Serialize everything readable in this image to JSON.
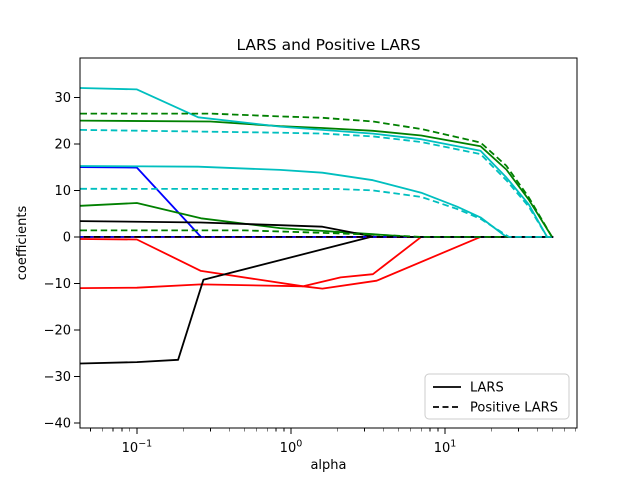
{
  "chart_data": {
    "type": "line",
    "title": "LARS and Positive LARS",
    "xlabel": "alpha",
    "ylabel": "coefficients",
    "x_scale": "log",
    "xlim": [
      0.0427,
      71.9
    ],
    "ylim": [
      -41.05,
      38.45
    ],
    "grid": false,
    "legend_position": "lower right",
    "legend_entries": [
      {
        "label": "LARS",
        "linestyle": "solid"
      },
      {
        "label": "Positive LARS",
        "linestyle": "dashed"
      }
    ],
    "x_ticks": [
      {
        "alpha": 0.1,
        "mantissa": "10",
        "exponent": "−1"
      },
      {
        "alpha": 1,
        "mantissa": "10",
        "exponent": "0"
      },
      {
        "alpha": 10,
        "mantissa": "10",
        "exponent": "1"
      }
    ],
    "x_minor_ticks": [
      0.05,
      0.06,
      0.07,
      0.08,
      0.09,
      0.2,
      0.3,
      0.4,
      0.5,
      0.6,
      0.7,
      0.8,
      0.9,
      2,
      3,
      4,
      5,
      6,
      7,
      8,
      9,
      20,
      30,
      40,
      50,
      60,
      70
    ],
    "y_ticks": [
      {
        "value": -40,
        "label": "−40"
      },
      {
        "value": -30,
        "label": "−30"
      },
      {
        "value": -20,
        "label": "−20"
      },
      {
        "value": -10,
        "label": "−10"
      },
      {
        "value": 0,
        "label": "0"
      },
      {
        "value": 10,
        "label": "10"
      },
      {
        "value": 20,
        "label": "20"
      },
      {
        "value": 30,
        "label": "30"
      }
    ],
    "colors": {
      "blue": "#0000ff",
      "green": "#008000",
      "red": "#ff0000",
      "cyan": "#00bfbf",
      "black": "#000000"
    },
    "series": [
      {
        "name": "lars-zero-line",
        "color": "#000000",
        "style": "solid",
        "points": [
          [
            0.043,
            0
          ],
          [
            50.3,
            0
          ]
        ]
      },
      {
        "name": "lars-blue",
        "color": "#0000ff",
        "style": "solid",
        "points": [
          [
            0.043,
            15.0
          ],
          [
            0.1,
            14.9
          ],
          [
            0.26,
            0
          ],
          [
            50.3,
            0
          ]
        ]
      },
      {
        "name": "lars-green-low",
        "color": "#008000",
        "style": "solid",
        "points": [
          [
            0.043,
            6.7
          ],
          [
            0.1,
            7.3
          ],
          [
            0.26,
            4.0
          ],
          [
            0.85,
            1.9
          ],
          [
            1.6,
            1.3
          ],
          [
            3.4,
            0.6
          ],
          [
            6,
            0
          ],
          [
            50.3,
            0
          ]
        ]
      },
      {
        "name": "lars-red-flat",
        "color": "#ff0000",
        "style": "solid",
        "points": [
          [
            0.043,
            -11.0
          ],
          [
            0.1,
            -10.9
          ],
          [
            0.26,
            -10.2
          ],
          [
            1.2,
            -10.6
          ],
          [
            2.1,
            -8.7
          ],
          [
            3.4,
            -8.0
          ],
          [
            7,
            0
          ],
          [
            50.3,
            0
          ]
        ]
      },
      {
        "name": "lars-red-dip",
        "color": "#ff0000",
        "style": "solid",
        "points": [
          [
            0.043,
            -0.45
          ],
          [
            0.1,
            -0.55
          ],
          [
            0.26,
            -7.3
          ],
          [
            1.2,
            -10.6
          ],
          [
            1.6,
            -11.1
          ],
          [
            3.6,
            -9.4
          ],
          [
            17,
            0
          ],
          [
            50.3,
            0
          ]
        ]
      },
      {
        "name": "lars-cyan-mid",
        "color": "#00bfbf",
        "style": "solid",
        "points": [
          [
            0.043,
            15.25
          ],
          [
            0.25,
            15.1
          ],
          [
            0.85,
            14.4
          ],
          [
            1.6,
            13.8
          ],
          [
            3.4,
            12.2
          ],
          [
            7,
            9.5
          ],
          [
            12,
            6.5
          ],
          [
            17,
            4.2
          ],
          [
            25,
            0
          ],
          [
            50.3,
            0
          ]
        ]
      },
      {
        "name": "lars-green-high",
        "color": "#008000",
        "style": "solid",
        "points": [
          [
            0.043,
            25.0
          ],
          [
            0.3,
            24.8
          ],
          [
            0.85,
            23.8
          ],
          [
            1.6,
            23.4
          ],
          [
            3.4,
            22.8
          ],
          [
            7,
            21.8
          ],
          [
            17,
            19.5
          ],
          [
            25,
            14.5
          ],
          [
            35,
            8
          ],
          [
            49.5,
            0
          ],
          [
            50.3,
            0
          ]
        ]
      },
      {
        "name": "lars-cyan-high",
        "color": "#00bfbf",
        "style": "solid",
        "points": [
          [
            0.043,
            32
          ],
          [
            0.1,
            31.7
          ],
          [
            0.25,
            25.7
          ],
          [
            0.85,
            23.7
          ],
          [
            1.6,
            23.0
          ],
          [
            3.4,
            22.2
          ],
          [
            7,
            21.0
          ],
          [
            17,
            18.5
          ],
          [
            25,
            12.8
          ],
          [
            35,
            7
          ],
          [
            46,
            0
          ],
          [
            50.3,
            0
          ]
        ]
      },
      {
        "name": "lars-black-neg",
        "color": "#000000",
        "style": "solid",
        "points": [
          [
            0.043,
            -27.2
          ],
          [
            0.1,
            -26.9
          ],
          [
            0.185,
            -26.4
          ],
          [
            0.27,
            -9.2
          ],
          [
            3.3,
            0
          ],
          [
            50.3,
            0
          ]
        ]
      },
      {
        "name": "lars-black-pos",
        "color": "#000000",
        "style": "solid",
        "points": [
          [
            0.043,
            3.4
          ],
          [
            0.26,
            3.1
          ],
          [
            0.9,
            2.5
          ],
          [
            1.6,
            2.2
          ],
          [
            3.5,
            0
          ],
          [
            50.3,
            0
          ]
        ]
      },
      {
        "name": "plars-red-zero",
        "color": "#ff0000",
        "style": "dashed",
        "dash_offset": 0,
        "points": [
          [
            0.043,
            0
          ],
          [
            50.3,
            0
          ]
        ]
      },
      {
        "name": "plars-blue-zero",
        "color": "#0000ff",
        "style": "dashed",
        "dash_offset": 3.4,
        "points": [
          [
            0.043,
            0
          ],
          [
            50.3,
            0
          ]
        ]
      },
      {
        "name": "plars-black-zero",
        "color": "#000000",
        "style": "dashed",
        "dash_offset": 6.8,
        "points": [
          [
            0.043,
            0
          ],
          [
            50.3,
            0
          ]
        ]
      },
      {
        "name": "plars-green-low",
        "color": "#008000",
        "style": "dashed",
        "points": [
          [
            0.043,
            1.4
          ],
          [
            0.5,
            1.4
          ],
          [
            1,
            1.1
          ],
          [
            3.4,
            0.5
          ],
          [
            7,
            0
          ],
          [
            50.3,
            0
          ]
        ]
      },
      {
        "name": "plars-cyan-mid",
        "color": "#00bfbf",
        "style": "dashed",
        "points": [
          [
            0.043,
            10.35
          ],
          [
            2,
            10.3
          ],
          [
            3.4,
            10.0
          ],
          [
            7,
            8.6
          ],
          [
            12,
            6.0
          ],
          [
            17,
            3.9
          ],
          [
            26,
            0
          ],
          [
            50.3,
            0
          ]
        ]
      },
      {
        "name": "plars-green-high",
        "color": "#008000",
        "style": "dashed",
        "points": [
          [
            0.043,
            26.5
          ],
          [
            0.3,
            26.5
          ],
          [
            0.85,
            25.9
          ],
          [
            1.6,
            25.6
          ],
          [
            3.4,
            24.8
          ],
          [
            7,
            23.2
          ],
          [
            17,
            20.3
          ],
          [
            25,
            15.3
          ],
          [
            35,
            8.5
          ],
          [
            49.5,
            0
          ],
          [
            50.3,
            0
          ]
        ]
      },
      {
        "name": "plars-cyan-high",
        "color": "#00bfbf",
        "style": "dashed",
        "points": [
          [
            0.043,
            23.0
          ],
          [
            0.85,
            22.4
          ],
          [
            1.6,
            22.2
          ],
          [
            3.4,
            21.6
          ],
          [
            7,
            20.4
          ],
          [
            17,
            17.8
          ],
          [
            25,
            12.2
          ],
          [
            35,
            6.5
          ],
          [
            46,
            0
          ],
          [
            50.3,
            0
          ]
        ]
      }
    ]
  }
}
